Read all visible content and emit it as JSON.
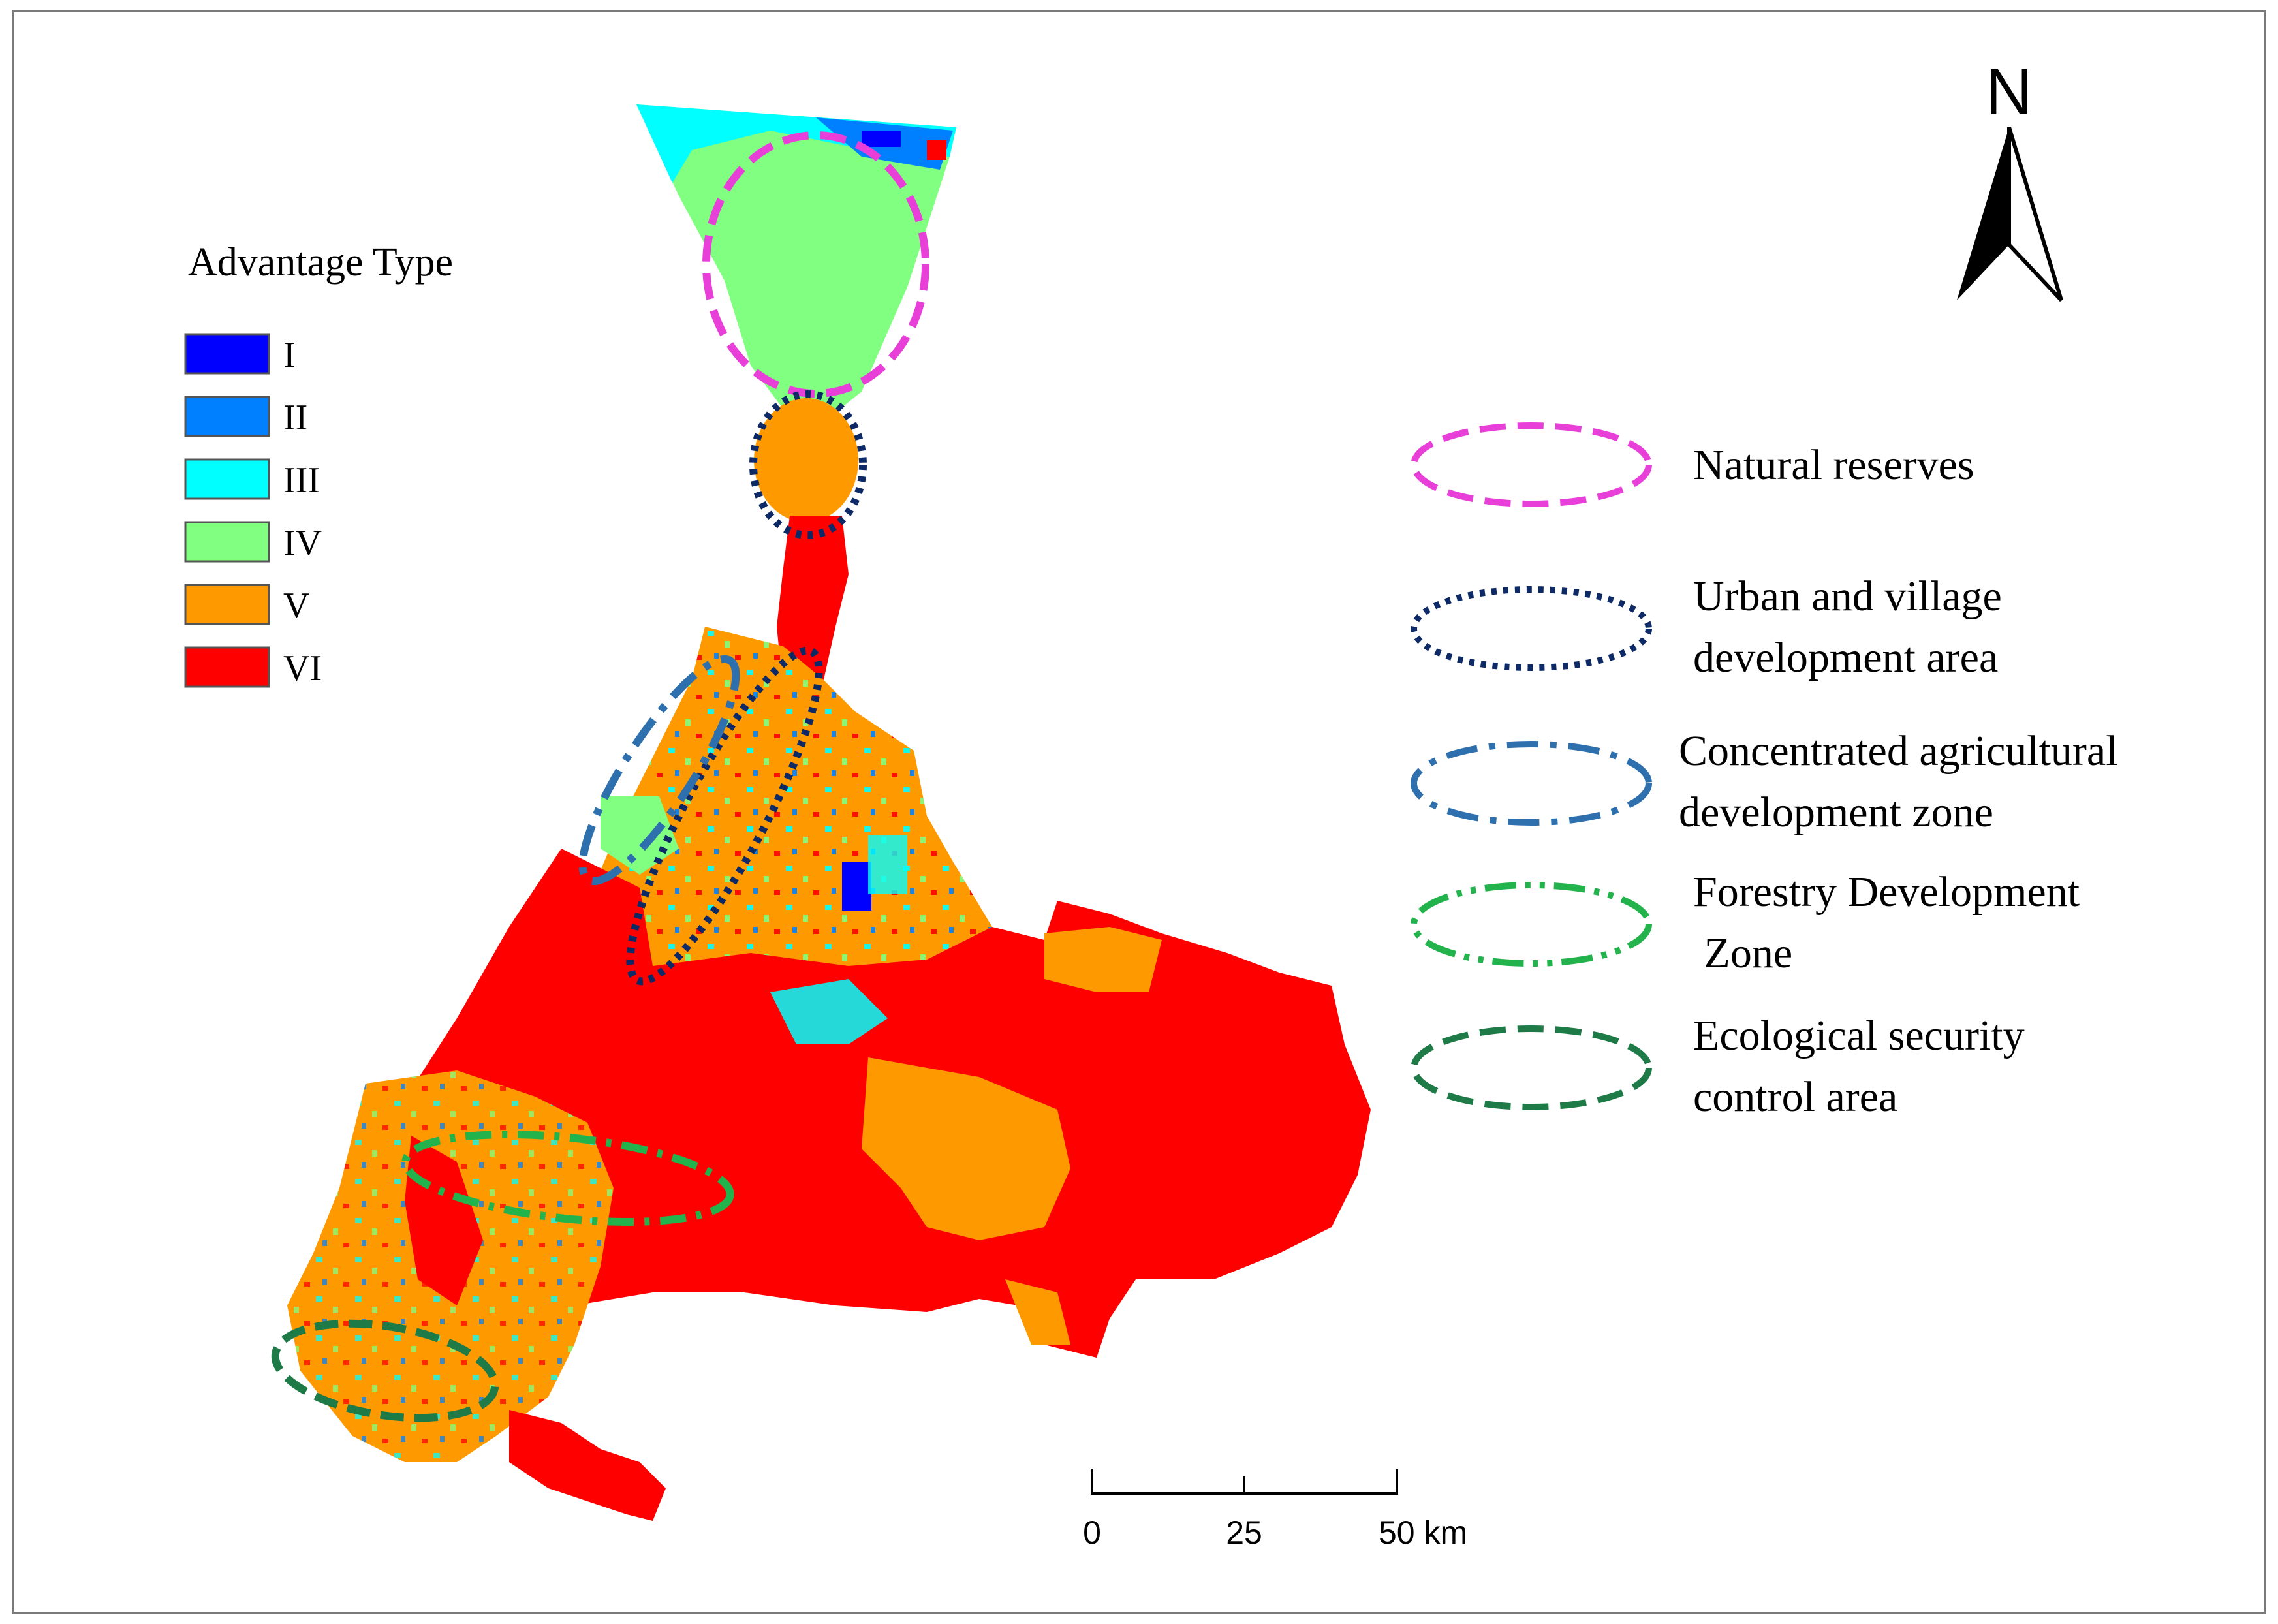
{
  "legend": {
    "title": "Advantage Type",
    "classes": [
      {
        "label": "I",
        "color": "#0000ff"
      },
      {
        "label": "II",
        "color": "#0080ff"
      },
      {
        "label": "III",
        "color": "#00ffff"
      },
      {
        "label": "IV",
        "color": "#80ff80"
      },
      {
        "label": "V",
        "color": "#ff9900"
      },
      {
        "label": "VI",
        "color": "#ff0000"
      }
    ]
  },
  "zones": [
    {
      "label_lines": [
        "Natural reserves"
      ],
      "color": "#e83fd8",
      "style": "dashed"
    },
    {
      "label_lines": [
        "Urban and village",
        "development area"
      ],
      "color": "#0d2a66",
      "style": "dotted"
    },
    {
      "label_lines": [
        "Concentrated agricultural",
        "development zone"
      ],
      "color": "#2e6fae",
      "style": "dash-dot"
    },
    {
      "label_lines": [
        "Forestry Development",
        " Zone"
      ],
      "color": "#22b34c",
      "style": "dash-dot-dot"
    },
    {
      "label_lines": [
        "Ecological security",
        "control area"
      ],
      "color": "#1e7a46",
      "style": "dashed"
    }
  ],
  "north_arrow": {
    "label": "N"
  },
  "scale_bar": {
    "ticks": [
      "0",
      "25",
      "50 km"
    ]
  }
}
